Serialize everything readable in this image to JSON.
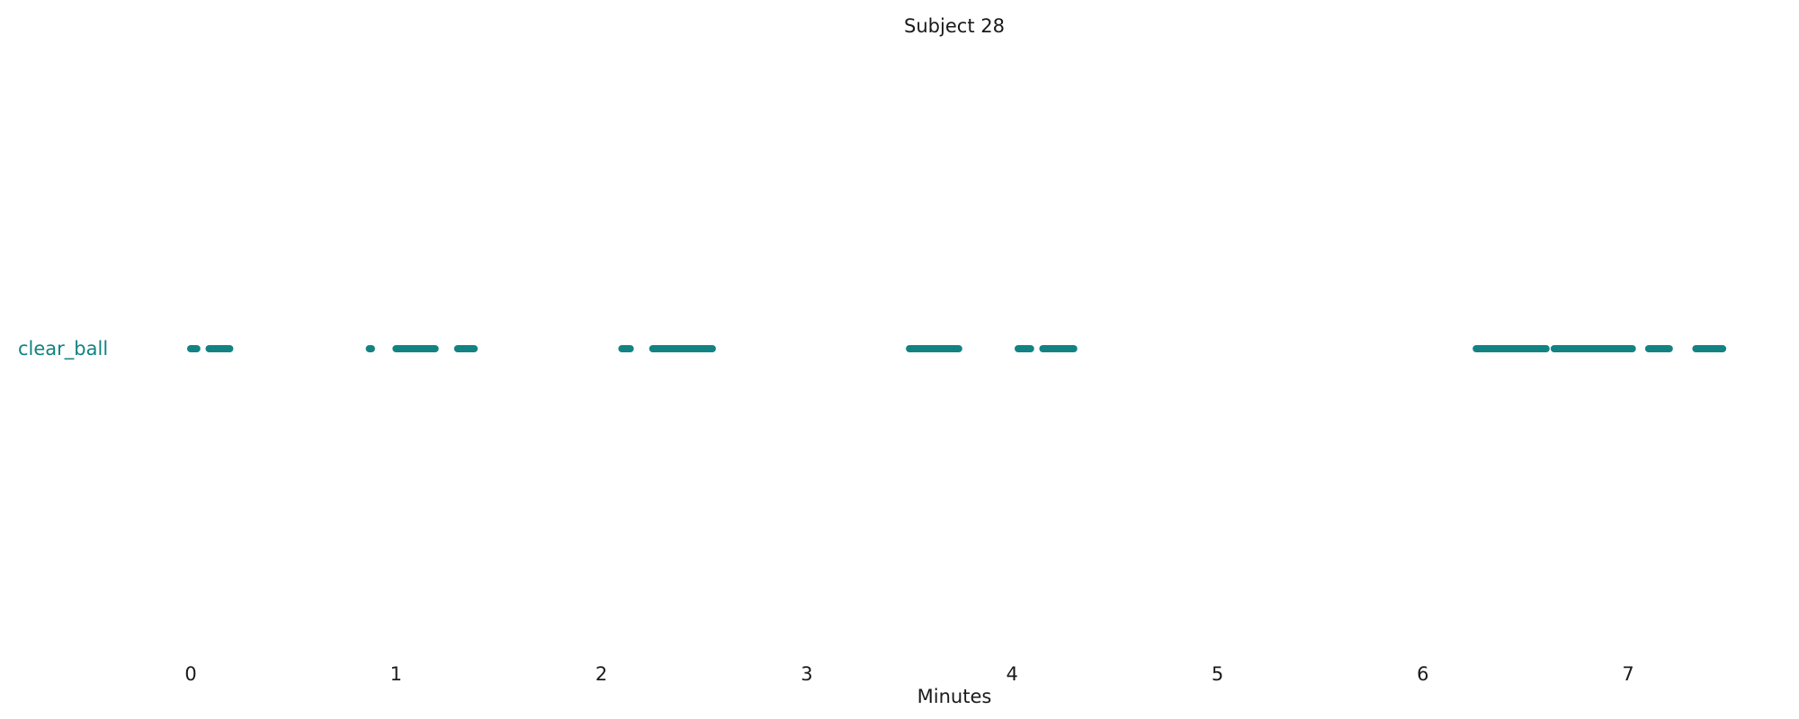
{
  "chart_data": {
    "type": "timeline",
    "title": "Subject 28",
    "xlabel": "Minutes",
    "ylabel": "",
    "xlim": [
      -0.1,
      7.9
    ],
    "xticks": [
      0,
      1,
      2,
      3,
      4,
      5,
      6,
      7
    ],
    "grid": false,
    "series": [
      {
        "name": "clear_ball",
        "color": "#138282",
        "segments": [
          [
            0.0,
            0.03
          ],
          [
            0.09,
            0.19
          ],
          [
            0.87,
            0.88
          ],
          [
            1.0,
            1.19
          ],
          [
            1.3,
            1.38
          ],
          [
            2.1,
            2.14
          ],
          [
            2.25,
            2.54
          ],
          [
            3.5,
            3.74
          ],
          [
            4.03,
            4.09
          ],
          [
            4.15,
            4.3
          ],
          [
            6.26,
            6.6
          ],
          [
            6.64,
            7.02
          ],
          [
            7.1,
            7.2
          ],
          [
            7.33,
            7.46
          ]
        ]
      }
    ]
  }
}
